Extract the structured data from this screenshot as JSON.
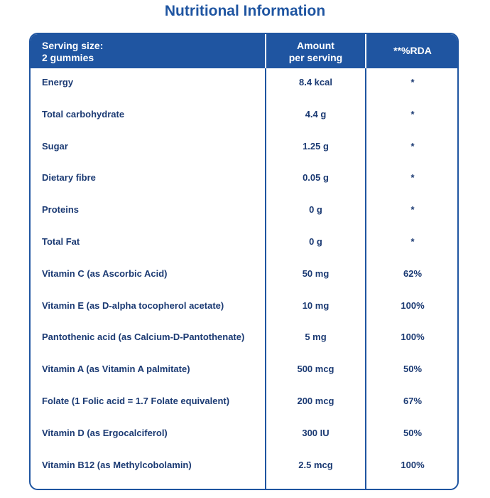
{
  "title": "Nutritional Information",
  "header": {
    "serving_line1": "Serving size:",
    "serving_line2": "2 gummies",
    "amount_line1": "Amount",
    "amount_line2": "per serving",
    "rda": "**%RDA"
  },
  "rows": [
    {
      "name": "Energy",
      "amount": "8.4 kcal",
      "rda": "*"
    },
    {
      "name": "Total carbohydrate",
      "amount": "4.4 g",
      "rda": "*"
    },
    {
      "name": "Sugar",
      "amount": "1.25 g",
      "rda": "*"
    },
    {
      "name": "Dietary fibre",
      "amount": "0.05 g",
      "rda": "*"
    },
    {
      "name": "Proteins",
      "amount": "0 g",
      "rda": "*"
    },
    {
      "name": "Total Fat",
      "amount": "0 g",
      "rda": "*"
    },
    {
      "name": "Vitamin C (as Ascorbic Acid)",
      "amount": "50 mg",
      "rda": "62%"
    },
    {
      "name": "Vitamin E (as D-alpha tocopherol acetate)",
      "amount": "10 mg",
      "rda": "100%"
    },
    {
      "name": "Pantothenic acid (as Calcium-D-Pantothenate)",
      "amount": "5 mg",
      "rda": "100%"
    },
    {
      "name": "Vitamin A (as Vitamin A palmitate)",
      "amount": "500 mcg",
      "rda": "50%"
    },
    {
      "name": "Folate (1 Folic acid = 1.7 Folate equivalent)",
      "amount": "200 mcg",
      "rda": "67%"
    },
    {
      "name": "Vitamin D (as Ergocalciferol)",
      "amount": "300 IU",
      "rda": "50%"
    },
    {
      "name": "Vitamin B12 (as Methylcobolamin)",
      "amount": "2.5 mcg",
      "rda": "100%"
    }
  ]
}
